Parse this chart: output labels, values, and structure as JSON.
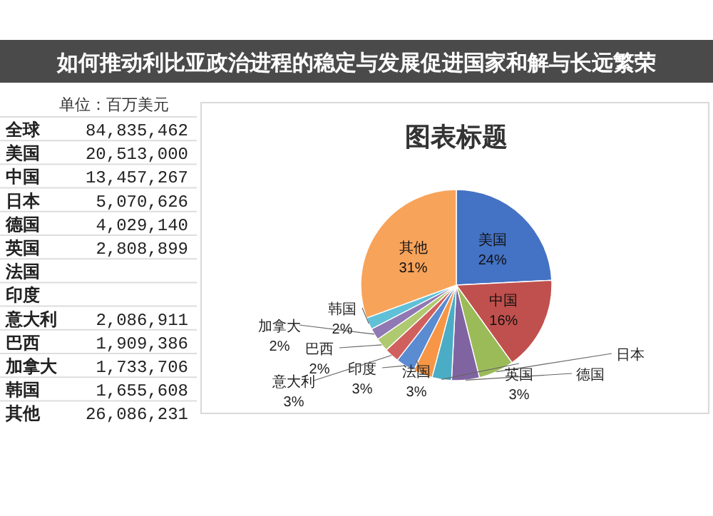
{
  "chart_data": [
    {
      "type": "other",
      "annotations": [
        "单位：百万美元"
      ],
      "categories": [
        "全球",
        "美国",
        "中国",
        "日本",
        "德国",
        "英国",
        "法国",
        "印度",
        "意大利",
        "巴西",
        "加拿大",
        "韩国",
        "其他"
      ],
      "value_labels": [
        "84,835,462",
        "20,513,000",
        "13,457,267",
        "5,070,626",
        "4,029,140",
        "2,808,899",
        null,
        null,
        "2,086,911",
        "1,909,386",
        "1,733,706",
        "1,655,608",
        "26,086,231"
      ]
    },
    {
      "type": "pie",
      "title": "图表标题",
      "categories": [
        "美国",
        "中国",
        "日本",
        "德国",
        "英国",
        "法国",
        "印度",
        "意大利",
        "巴西",
        "加拿大",
        "韩国",
        "其他"
      ],
      "values": [
        24.2,
        15.9,
        6.0,
        4.7,
        3.3,
        3.3,
        3.2,
        2.5,
        2.3,
        2.0,
        2.0,
        30.6
      ],
      "colors": [
        "#4472c4",
        "#c0504d",
        "#9bbb59",
        "#8064a2",
        "#4bacc6",
        "#f79646",
        "#5b8bd0",
        "#d0605d",
        "#afc970",
        "#9078b4",
        "#5fc0d8",
        "#f8a35a"
      ],
      "value_labels": [
        "24%",
        "16%",
        null,
        null,
        "3%",
        "3%",
        "3%",
        "3%",
        "2%",
        "2%",
        "2%",
        "31%"
      ],
      "annotations": [
        "如何推动利比亚政治进程的稳定与发展促进国家和解与长远繁荣"
      ]
    }
  ]
}
